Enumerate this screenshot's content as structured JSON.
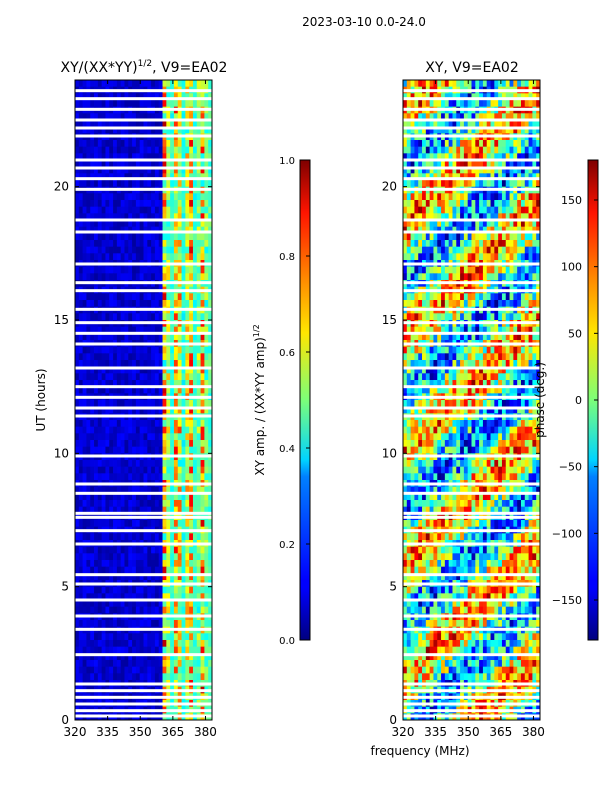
{
  "figure_title": "2023-03-10 0.0-24.0",
  "chart_data": [
    {
      "type": "heatmap",
      "title": "XY/(XX*YY)^1/2, V9=EA02",
      "title_main": "XY/(XX*YY)",
      "title_sup": "1/2",
      "title_suffix": ", V9=EA02",
      "xlabel": "",
      "ylabel": "UT (hours)",
      "xlim": [
        320,
        383
      ],
      "ylim": [
        0,
        24
      ],
      "xticks": [
        320,
        335,
        350,
        365,
        380
      ],
      "yticks": [
        0,
        5,
        10,
        15,
        20
      ],
      "colorbar": {
        "label": "XY amp. / (XX*YY amp)^1/2",
        "label_main": "XY amp. / (XX*YY amp)",
        "label_sup": "1/2",
        "range": [
          0.0,
          1.0
        ],
        "ticks": [
          "0.0",
          "0.2",
          "0.4",
          "0.6",
          "0.8",
          "1.0"
        ],
        "tick_values": [
          0.0,
          0.2,
          0.4,
          0.6,
          0.8,
          1.0
        ]
      }
    },
    {
      "type": "heatmap",
      "title": "XY, V9=EA02",
      "xlabel": "frequency (MHz)",
      "ylabel": "",
      "xlim": [
        320,
        383
      ],
      "ylim": [
        0,
        24
      ],
      "xticks": [
        320,
        335,
        350,
        365,
        380
      ],
      "yticks": [
        0,
        5,
        10,
        15,
        20
      ],
      "colorbar": {
        "label": "phase (deg.)",
        "range": [
          -180,
          180
        ],
        "ticks": [
          "−150",
          "−100",
          "−50",
          "0",
          "50",
          "100",
          "150"
        ],
        "tick_values": [
          -150,
          -100,
          -50,
          0,
          50,
          100,
          150
        ]
      }
    }
  ],
  "flagged_hours": [
    0.15,
    0.35,
    0.6,
    0.85,
    1.1,
    1.35,
    2.45,
    3.4,
    3.9,
    4.5,
    5.1,
    5.45,
    6.6,
    7.1,
    7.6,
    7.75,
    8.5,
    8.85,
    9.9,
    11.4,
    11.7,
    12.1,
    12.5,
    13.2,
    14.1,
    14.5,
    14.9,
    15.4,
    16.1,
    16.4,
    17.1,
    18.3,
    18.75,
    19.9,
    20.3,
    20.7,
    21.0,
    21.9,
    22.2,
    22.5,
    22.9,
    23.3,
    23.6
  ]
}
